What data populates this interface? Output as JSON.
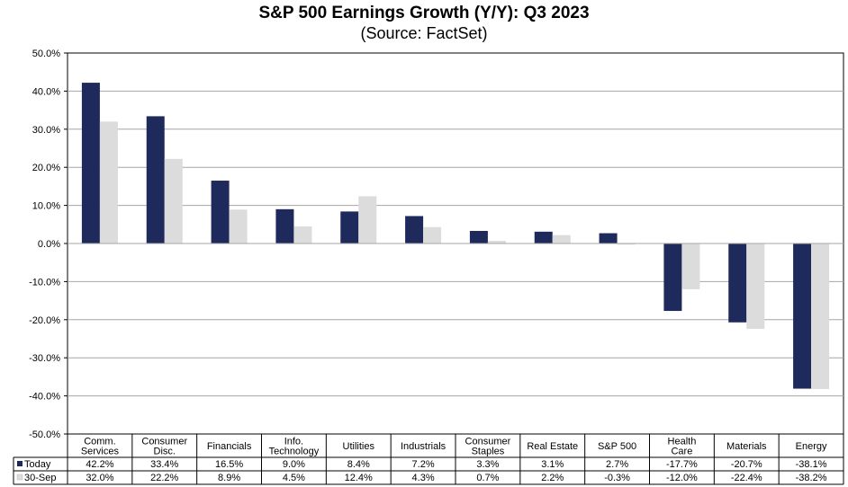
{
  "chart_data": {
    "type": "bar",
    "title": "S&P 500 Earnings Growth (Y/Y): Q3 2023",
    "subtitle": "(Source: FactSet)",
    "categories": [
      [
        "Comm.",
        "Services"
      ],
      [
        "Consumer",
        "Disc."
      ],
      [
        "Financials"
      ],
      [
        "Info.",
        "Technology"
      ],
      [
        "Utilities"
      ],
      [
        "Industrials"
      ],
      [
        "Consumer",
        "Staples"
      ],
      [
        "Real Estate"
      ],
      [
        "S&P 500"
      ],
      [
        "Health",
        "Care"
      ],
      [
        "Materials"
      ],
      [
        "Energy"
      ]
    ],
    "series": [
      {
        "name": "Today",
        "color": "#1f2a5c",
        "values": [
          42.2,
          33.4,
          16.5,
          9.0,
          8.4,
          7.2,
          3.3,
          3.1,
          2.7,
          -17.7,
          -20.7,
          -38.1
        ],
        "labels": [
          "42.2%",
          "33.4%",
          "16.5%",
          "9.0%",
          "8.4%",
          "7.2%",
          "3.3%",
          "3.1%",
          "2.7%",
          "-17.7%",
          "-20.7%",
          "-38.1%"
        ]
      },
      {
        "name": "30-Sep",
        "color": "#dcdcdc",
        "values": [
          32.0,
          22.2,
          8.9,
          4.5,
          12.4,
          4.3,
          0.7,
          2.2,
          -0.3,
          -12.0,
          -22.4,
          -38.2
        ],
        "labels": [
          "32.0%",
          "22.2%",
          "8.9%",
          "4.5%",
          "12.4%",
          "4.3%",
          "0.7%",
          "2.2%",
          "-0.3%",
          "-12.0%",
          "-22.4%",
          "-38.2%"
        ]
      }
    ],
    "ylim": [
      -50,
      50
    ],
    "yticks": [
      50,
      40,
      30,
      20,
      10,
      0,
      -10,
      -20,
      -30,
      -40,
      -50
    ],
    "ytick_labels": [
      "50.0%",
      "40.0%",
      "30.0%",
      "20.0%",
      "10.0%",
      "0.0%",
      "-10.0%",
      "-20.0%",
      "-30.0%",
      "-40.0%",
      "-50.0%"
    ],
    "grid": true,
    "legend": "data-table-rows"
  }
}
